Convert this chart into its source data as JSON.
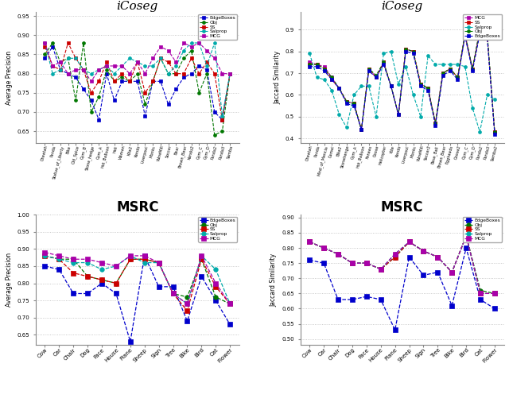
{
  "icoseg_ap_categories": [
    "Cheetah",
    "Panda",
    "Statue_of_Liberty",
    "Bike",
    "Old_Spice",
    "Gym_B",
    "Stone_hedge",
    "Gym_A",
    "Hot_Balloon",
    "Heli",
    "Women",
    "Kite2",
    "Kendo",
    "Liverpool",
    "Monks",
    "WineMill",
    "Soccer",
    "Bear",
    "Brown_Bear",
    "Kendo2",
    "Gym_C",
    "Gym_D",
    "Panda2",
    "Panda3",
    "Samba"
  ],
  "icoseg_ap": {
    "EdgeBoxes": [
      0.84,
      0.87,
      0.81,
      0.8,
      0.79,
      0.76,
      0.73,
      0.68,
      0.8,
      0.73,
      0.78,
      0.78,
      0.78,
      0.69,
      0.78,
      0.78,
      0.72,
      0.76,
      0.79,
      0.8,
      0.82,
      0.81,
      0.7,
      0.68,
      0.8
    ],
    "Obj": [
      0.85,
      0.88,
      0.83,
      0.84,
      0.73,
      0.88,
      0.7,
      0.74,
      0.81,
      0.78,
      0.79,
      0.78,
      0.8,
      0.72,
      0.78,
      0.84,
      0.8,
      0.8,
      0.84,
      0.86,
      0.75,
      0.8,
      0.64,
      0.65,
      0.8
    ],
    "SS": [
      0.87,
      0.82,
      0.81,
      0.88,
      0.84,
      0.81,
      0.75,
      0.78,
      0.83,
      0.78,
      0.8,
      0.78,
      0.83,
      0.75,
      0.78,
      0.84,
      0.83,
      0.8,
      0.8,
      0.84,
      0.8,
      0.83,
      0.8,
      0.68,
      0.8
    ],
    "Salprop": [
      0.88,
      0.8,
      0.81,
      0.84,
      0.84,
      0.81,
      0.8,
      0.81,
      0.82,
      0.8,
      0.82,
      0.84,
      0.83,
      0.82,
      0.82,
      0.84,
      0.8,
      0.82,
      0.86,
      0.88,
      0.88,
      0.82,
      0.88,
      0.69,
      0.8
    ],
    "MCG": [
      0.88,
      0.82,
      0.83,
      0.8,
      0.81,
      0.81,
      0.78,
      0.81,
      0.82,
      0.82,
      0.82,
      0.8,
      0.83,
      0.8,
      0.84,
      0.87,
      0.86,
      0.83,
      0.88,
      0.87,
      0.88,
      0.86,
      0.84,
      0.8,
      0.8
    ]
  },
  "icoseg_js_categories": [
    "Cheetah",
    "Panda",
    "Mind_of_Mencia",
    "Camel",
    "Bike2",
    "Stonehenge",
    "Gym_A",
    "Hot_Balloon",
    "Fenees",
    "Goose",
    "Helicopter",
    "Kite",
    "Kendo",
    "Liverpool",
    "Monks",
    "WineMill",
    "Soccer2",
    "Base_Ball",
    "Brown_Bear",
    "Eggheads",
    "Goose2",
    "Gym_C",
    "Gym_D",
    "Panda2",
    "Panda3",
    "Samba2"
  ],
  "icoseg_js": {
    "MCG": [
      0.75,
      0.74,
      0.73,
      0.68,
      0.63,
      0.57,
      0.56,
      0.44,
      0.72,
      0.68,
      0.75,
      0.64,
      0.51,
      0.81,
      0.8,
      0.65,
      0.63,
      0.47,
      0.7,
      0.72,
      0.68,
      0.87,
      0.72,
      0.9,
      0.87,
      0.43
    ],
    "SS": [
      0.74,
      0.74,
      0.72,
      0.67,
      0.63,
      0.57,
      0.56,
      0.44,
      0.72,
      0.68,
      0.75,
      0.64,
      0.51,
      0.81,
      0.8,
      0.65,
      0.63,
      0.47,
      0.7,
      0.72,
      0.68,
      0.88,
      0.72,
      0.89,
      0.87,
      0.43
    ],
    "Salprop": [
      0.79,
      0.68,
      0.67,
      0.62,
      0.51,
      0.45,
      0.6,
      0.64,
      0.64,
      0.5,
      0.79,
      0.8,
      0.65,
      0.73,
      0.6,
      0.5,
      0.78,
      0.74,
      0.74,
      0.74,
      0.74,
      0.73,
      0.54,
      0.43,
      0.6,
      0.58
    ],
    "Obj": [
      0.74,
      0.74,
      0.72,
      0.68,
      0.63,
      0.57,
      0.56,
      0.44,
      0.72,
      0.69,
      0.75,
      0.64,
      0.51,
      0.81,
      0.8,
      0.65,
      0.63,
      0.47,
      0.7,
      0.72,
      0.68,
      0.88,
      0.72,
      0.9,
      0.88,
      0.43
    ],
    "EdgeBoxes": [
      0.73,
      0.73,
      0.71,
      0.67,
      0.63,
      0.56,
      0.55,
      0.44,
      0.71,
      0.68,
      0.74,
      0.64,
      0.51,
      0.8,
      0.79,
      0.64,
      0.62,
      0.46,
      0.69,
      0.71,
      0.67,
      0.87,
      0.71,
      0.88,
      0.86,
      0.42
    ]
  },
  "msrc_categories": [
    "Cow",
    "Car",
    "Chair",
    "Dog",
    "Face",
    "House",
    "Plane",
    "Sheep",
    "Sign",
    "Tree",
    "Bike",
    "Bird",
    "Cat",
    "Flower"
  ],
  "msrc_ap": {
    "EdgeBoxes": [
      0.85,
      0.84,
      0.77,
      0.77,
      0.8,
      0.77,
      0.63,
      0.88,
      0.79,
      0.79,
      0.69,
      0.82,
      0.75,
      0.68
    ],
    "Obj": [
      0.88,
      0.87,
      0.87,
      0.82,
      0.81,
      0.8,
      0.87,
      0.87,
      0.86,
      0.77,
      0.76,
      0.87,
      0.76,
      0.74
    ],
    "SS": [
      0.88,
      0.87,
      0.83,
      0.82,
      0.81,
      0.8,
      0.87,
      0.87,
      0.86,
      0.77,
      0.72,
      0.87,
      0.79,
      0.74
    ],
    "Salprop": [
      0.88,
      0.87,
      0.86,
      0.86,
      0.84,
      0.85,
      0.88,
      0.86,
      0.86,
      0.77,
      0.74,
      0.88,
      0.84,
      0.74
    ],
    "MCG": [
      0.89,
      0.88,
      0.87,
      0.87,
      0.86,
      0.85,
      0.88,
      0.88,
      0.86,
      0.77,
      0.74,
      0.88,
      0.8,
      0.74
    ]
  },
  "msrc_js": {
    "EdgeBoxes": [
      0.76,
      0.75,
      0.63,
      0.63,
      0.64,
      0.63,
      0.53,
      0.77,
      0.71,
      0.72,
      0.61,
      0.8,
      0.63,
      0.6
    ],
    "Obj": [
      0.82,
      0.8,
      0.78,
      0.75,
      0.75,
      0.73,
      0.77,
      0.82,
      0.79,
      0.77,
      0.72,
      0.84,
      0.66,
      0.65
    ],
    "SS": [
      0.82,
      0.8,
      0.78,
      0.75,
      0.75,
      0.73,
      0.77,
      0.82,
      0.79,
      0.77,
      0.72,
      0.84,
      0.65,
      0.65
    ],
    "Salprop": [
      0.82,
      0.8,
      0.78,
      0.75,
      0.75,
      0.73,
      0.78,
      0.82,
      0.79,
      0.77,
      0.72,
      0.84,
      0.65,
      0.65
    ],
    "MCG": [
      0.82,
      0.8,
      0.78,
      0.75,
      0.75,
      0.73,
      0.78,
      0.82,
      0.79,
      0.77,
      0.72,
      0.84,
      0.65,
      0.65
    ]
  }
}
